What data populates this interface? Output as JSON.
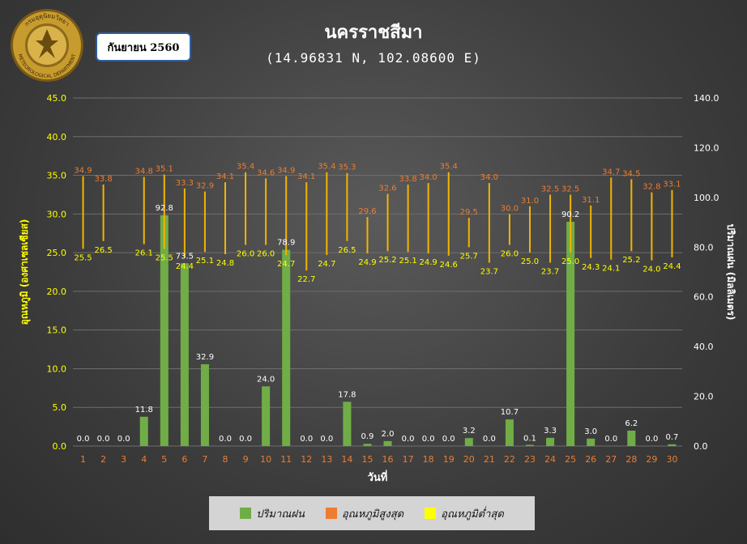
{
  "header": {
    "title": "นครราชสีมา",
    "subtitle": "(14.96831 N, 102.08600 E)",
    "month_label": "กันยายน 2560"
  },
  "logo": {
    "text_top": "กรมอุตุนิยมวิทยา",
    "text_bottom": "METEOROLOGICAL DEPARTMENT"
  },
  "legend": {
    "rain": "ปริมาณฝน",
    "tmax": "อุณหภูมิสูงสุด",
    "tmin": "อุณหภูมิต่ำสุด"
  },
  "colors": {
    "rain": "#70ad47",
    "tmax": "#ed7d31",
    "tmin": "#ffff00",
    "range_line": "#f2b400",
    "left_axis_text": "#ffff00",
    "x_tick_text": "#ed7d31",
    "grid": "#6e6e6e"
  },
  "chart_data": {
    "type": "bar",
    "title": "นครราชสีมา",
    "subtitle": "(14.96831 N, 102.08600 E)",
    "xlabel": "วันที่",
    "ylabel_left": "อุณหภูมิ (องศาเซลเซียส)",
    "ylabel_right": "ปริมาณฝน (มิลลิเมตร)",
    "ylim_left": [
      0,
      45
    ],
    "ylim_right": [
      0,
      140
    ],
    "yticks_left": [
      "0.0",
      "5.0",
      "10.0",
      "15.0",
      "20.0",
      "25.0",
      "30.0",
      "35.0",
      "40.0",
      "45.0"
    ],
    "yticks_right": [
      "0.0",
      "20.0",
      "40.0",
      "60.0",
      "80.0",
      "100.0",
      "120.0",
      "140.0"
    ],
    "grid": true,
    "legend_position": "bottom",
    "categories": [
      "1",
      "2",
      "3",
      "4",
      "5",
      "6",
      "7",
      "8",
      "9",
      "10",
      "11",
      "12",
      "13",
      "14",
      "15",
      "16",
      "17",
      "18",
      "19",
      "20",
      "21",
      "22",
      "23",
      "24",
      "25",
      "26",
      "27",
      "28",
      "29",
      "30"
    ],
    "series": [
      {
        "name": "ปริมาณฝน",
        "type": "bar",
        "axis": "right",
        "values": [
          0.0,
          0.0,
          0.0,
          11.8,
          92.8,
          73.5,
          32.9,
          0.0,
          0.0,
          24.0,
          78.9,
          0.0,
          0.0,
          17.8,
          0.9,
          2.0,
          0.0,
          0.0,
          0.0,
          3.2,
          0.0,
          10.7,
          0.1,
          3.3,
          90.2,
          3.0,
          0.0,
          6.2,
          0.0,
          0.7
        ],
        "labels": [
          "0.0",
          "0.0",
          "0.0",
          "11.8",
          "92.8",
          "73.5",
          "32.9",
          "0.0",
          "0.0",
          "24.0",
          "78.9",
          "0.0",
          "0.0",
          "17.8",
          "0.9",
          "2.0",
          "0.0",
          "0.0",
          "0.0",
          "3.2",
          "0.0",
          "10.7",
          "0.1",
          "3.3",
          "90.2",
          "3.0",
          "0.0",
          "6.2",
          "0.0",
          "0.7"
        ]
      },
      {
        "name": "อุณหภูมิสูงสุด",
        "type": "range-high",
        "axis": "left",
        "values": [
          34.9,
          33.8,
          null,
          34.8,
          35.1,
          33.3,
          32.9,
          34.1,
          35.4,
          34.6,
          34.9,
          34.1,
          35.4,
          35.3,
          29.6,
          32.6,
          33.8,
          34.0,
          35.4,
          29.5,
          34.0,
          30.0,
          31.0,
          32.5,
          32.5,
          31.1,
          34.7,
          34.5,
          32.8,
          33.1
        ],
        "labels": [
          "34.9",
          "33.8",
          "",
          "34.8",
          "35.1",
          "33.3",
          "32.9",
          "34.1",
          "35.4",
          "34.6",
          "34.9",
          "34.1",
          "35.4",
          "35.3",
          "29.6",
          "32.6",
          "33.8",
          "34.0",
          "35.4",
          "29.5",
          "34.0",
          "30.0",
          "31.0",
          "32.5",
          "32.5",
          "31.1",
          "34.7",
          "34.5",
          "32.8",
          "33.1"
        ]
      },
      {
        "name": "อุณหภูมิต่ำสุด",
        "type": "range-low",
        "axis": "left",
        "values": [
          25.5,
          26.5,
          null,
          26.1,
          25.5,
          24.4,
          25.1,
          24.8,
          26.0,
          26.0,
          24.7,
          22.7,
          24.7,
          26.5,
          24.9,
          25.2,
          25.1,
          24.9,
          24.6,
          25.7,
          23.7,
          26.0,
          25.0,
          23.7,
          25.0,
          24.3,
          24.1,
          25.2,
          24.0,
          24.4
        ],
        "labels": [
          "25.5",
          "26.5",
          "",
          "26.1",
          "25.5",
          "24.4",
          "25.1",
          "24.8",
          "26.0",
          "26.0",
          "24.7",
          "22.7",
          "24.7",
          "26.5",
          "24.9",
          "25.2",
          "25.1",
          "24.9",
          "24.6",
          "25.7",
          "23.7",
          "26.0",
          "25.0",
          "23.7",
          "25.0",
          "24.3",
          "24.1",
          "25.2",
          "24.0",
          "24.4"
        ]
      }
    ]
  }
}
